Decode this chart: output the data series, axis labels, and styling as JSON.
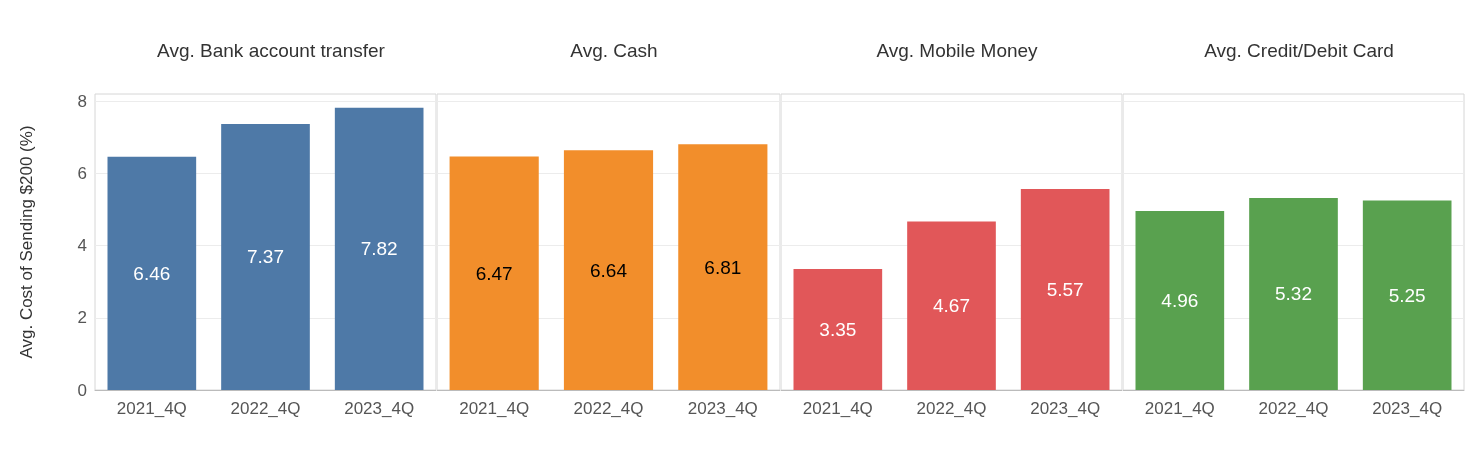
{
  "chart_data": [
    {
      "type": "bar",
      "title": "Avg. Bank account transfer",
      "ylabel": "Avg. Cost of Sending $200 (%)",
      "categories": [
        "2021_4Q",
        "2022_4Q",
        "2023_4Q"
      ],
      "values": [
        6.46,
        7.37,
        7.82
      ],
      "color": "#4e79a7",
      "ylim": [
        0,
        8.2
      ],
      "yticks": [
        0,
        2,
        4,
        6,
        8
      ],
      "grid": "y",
      "data_labels": true
    },
    {
      "type": "bar",
      "title": "Avg. Cash",
      "categories": [
        "2021_4Q",
        "2022_4Q",
        "2023_4Q"
      ],
      "values": [
        6.47,
        6.64,
        6.81
      ],
      "color": "#f28e2b",
      "ylim": [
        0,
        8.2
      ],
      "yticks": [
        0,
        2,
        4,
        6,
        8
      ],
      "grid": "y",
      "data_labels": true,
      "tick_labels": "x"
    },
    {
      "type": "bar",
      "title": "Avg. Mobile Money",
      "categories": [
        "2021_4Q",
        "2022_4Q",
        "2023_4Q"
      ],
      "values": [
        3.35,
        4.67,
        5.57
      ],
      "color": "#e15759",
      "ylim": [
        0,
        8.2
      ],
      "yticks": [
        0,
        2,
        4,
        6,
        8
      ],
      "grid": "y",
      "data_labels": true,
      "tick_labels": "x"
    },
    {
      "type": "bar",
      "title": "Avg. Credit/Debit Card",
      "categories": [
        "2021_4Q",
        "2022_4Q",
        "2023_4Q"
      ],
      "values": [
        4.96,
        5.32,
        5.25
      ],
      "color": "#59a14f",
      "ylim": [
        0,
        8.2
      ],
      "yticks": [
        0,
        2,
        4,
        6,
        8
      ],
      "grid": "y",
      "data_labels": true,
      "tick_labels": "x"
    }
  ]
}
